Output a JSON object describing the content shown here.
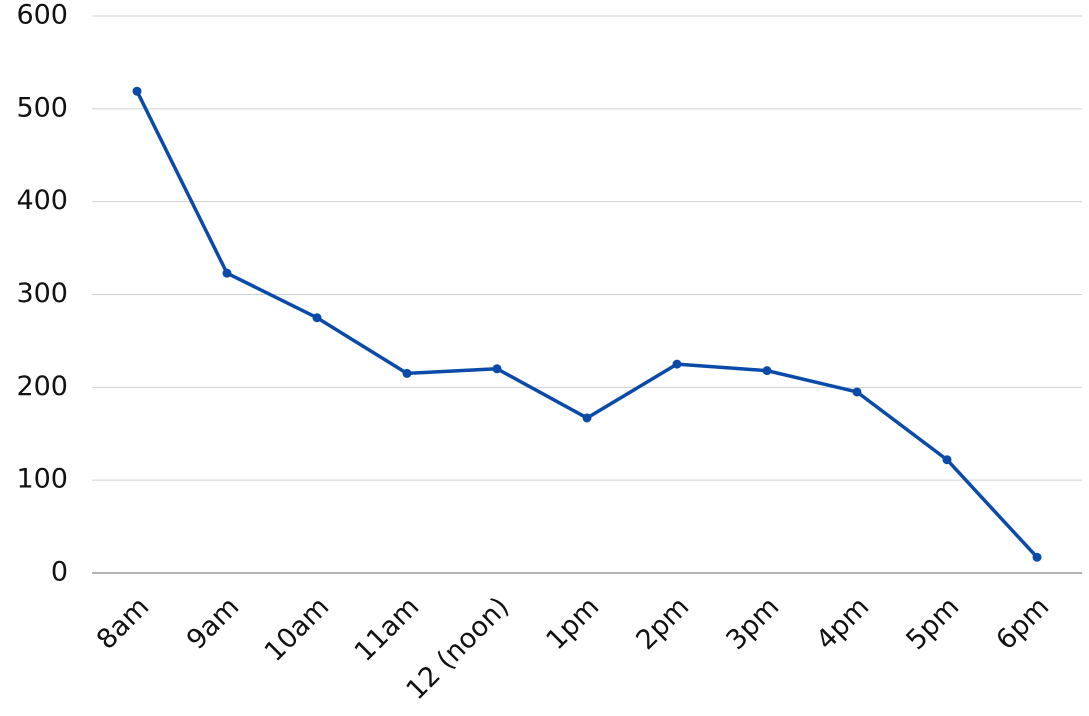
{
  "chart_data": {
    "type": "line",
    "categories": [
      "8am",
      "9am",
      "10am",
      "11am",
      "12 (noon)",
      "1pm",
      "2pm",
      "3pm",
      "4pm",
      "5pm",
      "6pm"
    ],
    "values": [
      519,
      323,
      275,
      215,
      220,
      167,
      225,
      218,
      195,
      122,
      17
    ],
    "color": "#0a4aa8",
    "ylim": [
      0,
      600
    ],
    "yticks": [
      0,
      100,
      200,
      300,
      400,
      500,
      600
    ],
    "grid": true
  }
}
